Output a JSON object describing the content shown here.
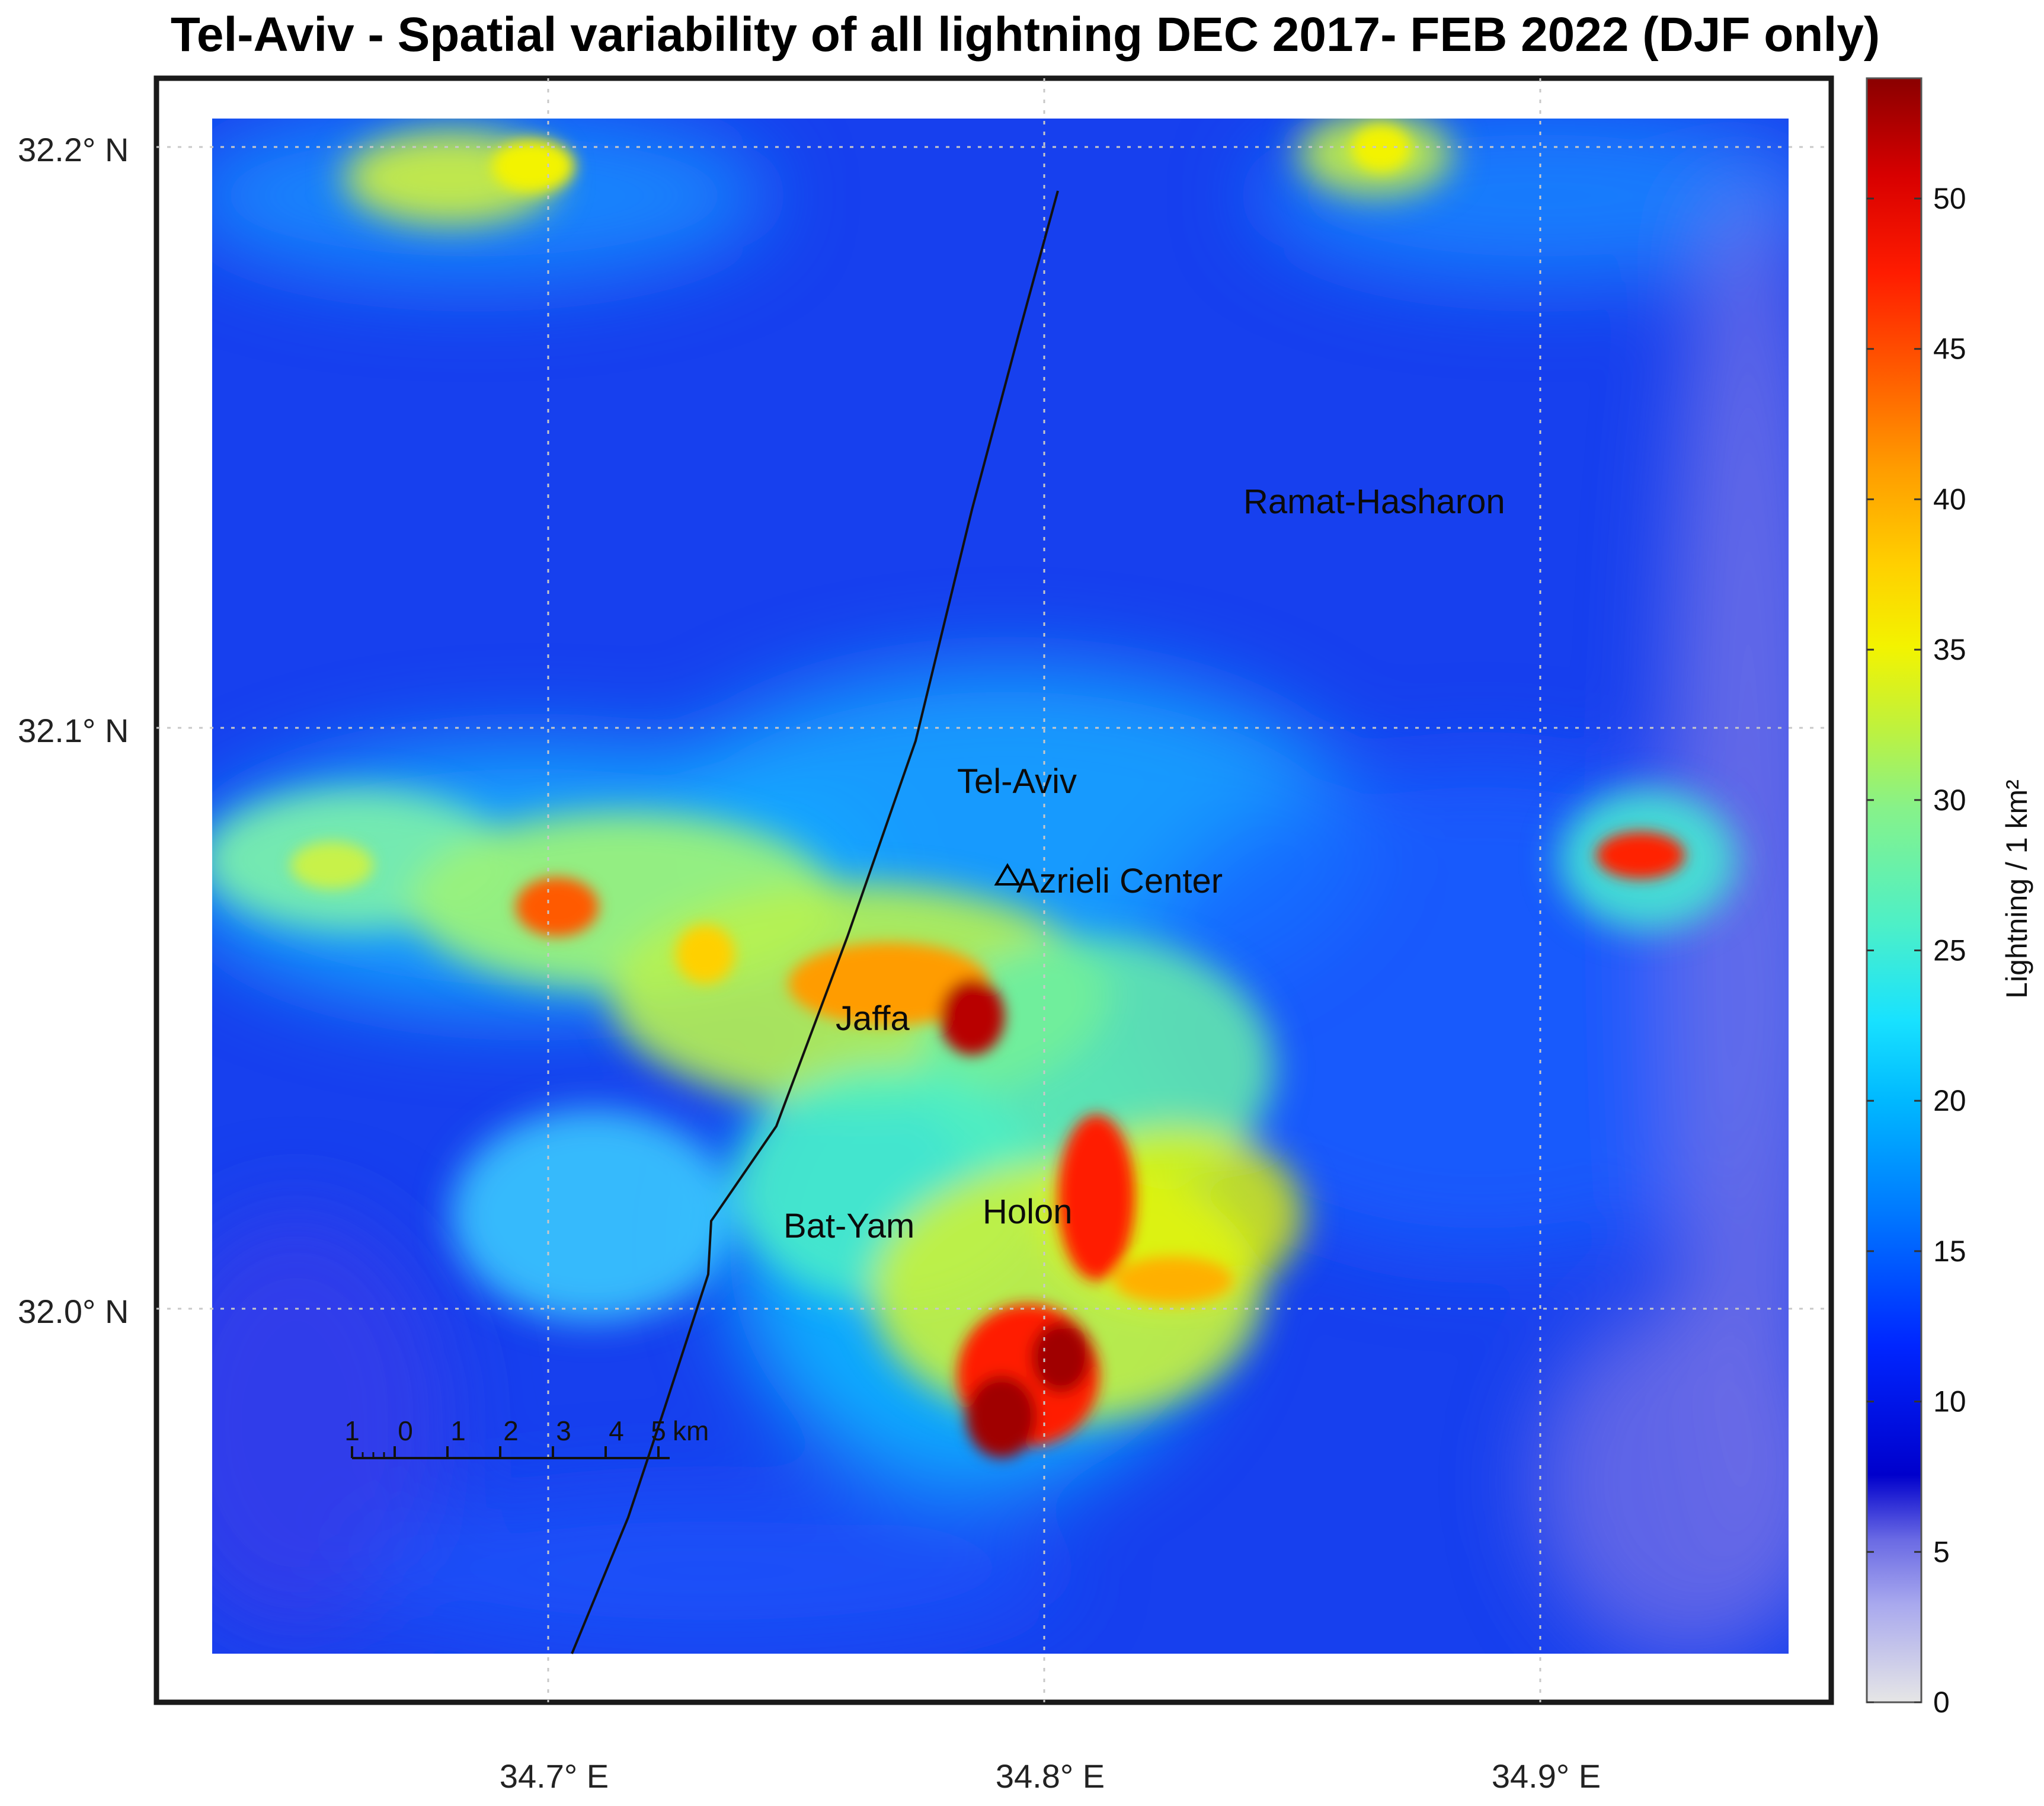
{
  "title": "Tel-Aviv - Spatial variability of all lightning DEC 2017- FEB 2022 (DJF only)",
  "axes": {
    "lat_ticks": [
      {
        "value": 32.2,
        "label": "32.2° N"
      },
      {
        "value": 32.1,
        "label": "32.1° N"
      },
      {
        "value": 32.0,
        "label": "32.0° N"
      }
    ],
    "lon_ticks": [
      {
        "value": 34.7,
        "label": "34.7° E"
      },
      {
        "value": 34.8,
        "label": "34.8° E"
      },
      {
        "value": 34.9,
        "label": "34.9° E"
      }
    ],
    "lat_range": [
      31.935,
      32.245
    ],
    "lon_range": [
      34.625,
      34.965
    ],
    "grid": true
  },
  "map_data": {
    "heat_range": [
      0,
      54
    ],
    "places": [
      {
        "name": "Ramat-Hasharon",
        "lon": 34.865,
        "lat": 32.135
      },
      {
        "name": "Tel-Aviv",
        "lon": 34.7855,
        "lat": 32.088
      },
      {
        "name": "Azrieli Center",
        "lon": 34.792,
        "lat": 32.0705,
        "marker": "triangle"
      },
      {
        "name": "Jaffa",
        "lon": 34.7645,
        "lat": 32.0495
      },
      {
        "name": "Bat-Yam",
        "lon": 34.747,
        "lat": 32.014
      },
      {
        "name": "Holon",
        "lon": 34.779,
        "lat": 32.017
      }
    ],
    "hotspots": [
      {
        "lon": 34.795,
        "lat": 31.983,
        "value": 52
      },
      {
        "lon": 34.813,
        "lat": 32.022,
        "value": 48
      },
      {
        "lon": 34.784,
        "lat": 32.051,
        "value": 52
      },
      {
        "lon": 34.76,
        "lat": 32.055,
        "value": 42
      },
      {
        "lon": 34.703,
        "lat": 32.066,
        "value": 45
      },
      {
        "lon": 34.922,
        "lat": 32.077,
        "value": 45
      },
      {
        "lon": 34.835,
        "lat": 32.004,
        "value": 38
      },
      {
        "lon": 34.706,
        "lat": 32.204,
        "value": 32
      },
      {
        "lon": 34.871,
        "lat": 32.208,
        "value": 31
      },
      {
        "lon": 34.732,
        "lat": 32.062,
        "value": 32
      }
    ],
    "scale_bar": {
      "labels": [
        "1",
        "0",
        "1",
        "2",
        "3",
        "4",
        "5"
      ],
      "unit": "km"
    }
  },
  "colorbar": {
    "label": "Lightning / 1 km²",
    "min": 0,
    "max": 54,
    "ticks": [
      0,
      5,
      10,
      15,
      20,
      25,
      30,
      35,
      40,
      45,
      50
    ],
    "colors": [
      "#e6e6e6",
      "#a9a9ee",
      "#6a6ae4",
      "#3b3be2",
      "#0000cc",
      "#0026ff",
      "#0077ff",
      "#00b8ff",
      "#18e2ff",
      "#4ef0c6",
      "#86f28a",
      "#bff23d",
      "#f3f300",
      "#ffd000",
      "#ff9c00",
      "#ff5a00",
      "#ff1c00",
      "#d80000",
      "#8a0000"
    ]
  }
}
